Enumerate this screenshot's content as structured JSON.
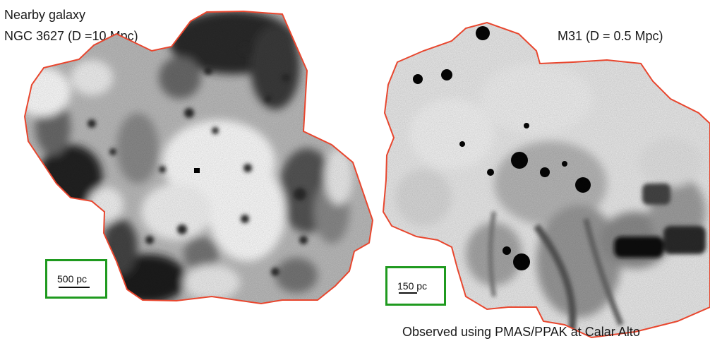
{
  "left_panel": {
    "title_line1": "Nearby galaxy",
    "title_line2": "NGC 3627 (D =10 Mpc)",
    "scalebar_label": "500 pc"
  },
  "right_panel": {
    "title": "M31 (D = 0.5 Mpc)",
    "scalebar_label": "150 pc"
  },
  "caption": "Observed using PMAS/PPAK at Calar Alto",
  "colors": {
    "outline": "#e8462e",
    "scalebox": "#1f9a1f",
    "image_dark": "#111111",
    "image_light": "#ffffff"
  }
}
